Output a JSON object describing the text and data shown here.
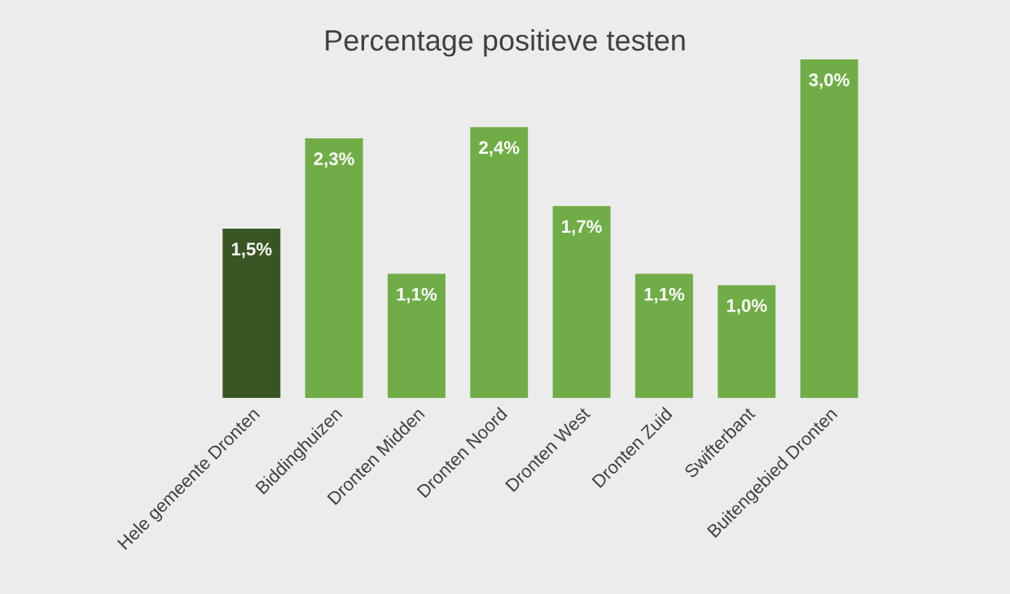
{
  "chart_data": {
    "type": "bar",
    "title": "Percentage positieve testen",
    "categories": [
      "Hele gemeente Dronten",
      "Biddinghuizen",
      "Dronten Midden",
      "Dronten Noord",
      "Dronten West",
      "Dronten Zuid",
      "Swifterbant",
      "Buitengebied Dronten"
    ],
    "values": [
      1.5,
      2.3,
      1.1,
      2.4,
      1.7,
      1.1,
      1.0,
      3.0
    ],
    "colors": [
      "#375623",
      "#70ad47",
      "#70ad47",
      "#70ad47",
      "#70ad47",
      "#70ad47",
      "#70ad47",
      "#70ad47"
    ],
    "value_labels": [
      "1,5%",
      "2,3%",
      "1,1%",
      "2,4%",
      "1,7%",
      "1,1%",
      "1,0%",
      "3,0%"
    ],
    "grid": false
  }
}
